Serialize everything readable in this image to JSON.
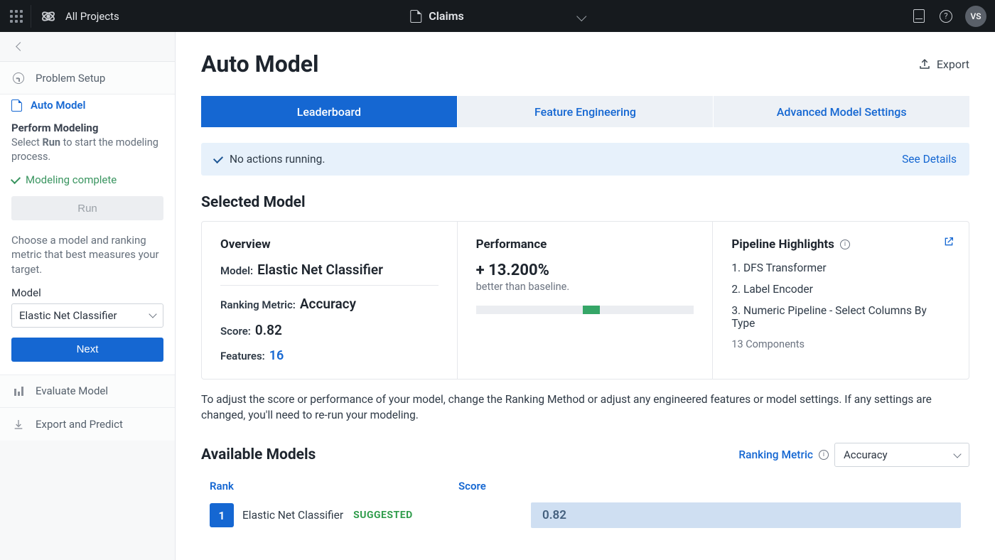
{
  "topbar": {
    "brand": "All Projects",
    "doc_name": "Claims",
    "avatar": "VS"
  },
  "sidebar": {
    "steps": {
      "problem_setup": "Problem Setup",
      "auto_model": "Auto Model",
      "evaluate": "Evaluate Model",
      "export": "Export and Predict"
    },
    "perform": {
      "title": "Perform Modeling",
      "desc_prefix": "Select ",
      "desc_bold": "Run",
      "desc_suffix": " to start the modeling process."
    },
    "status": "Modeling complete",
    "run_label": "Run",
    "help_text": "Choose a model and ranking metric that best measures your target.",
    "model_label": "Model",
    "model_value": "Elastic Net Classifier",
    "next_label": "Next"
  },
  "page": {
    "title": "Auto Model",
    "export_label": "Export"
  },
  "tabs": {
    "leaderboard": "Leaderboard",
    "feature_eng": "Feature Engineering",
    "advanced": "Advanced Model Settings"
  },
  "banner": {
    "message": "No actions running.",
    "link": "See Details"
  },
  "selected": {
    "section_title": "Selected Model",
    "overview": {
      "title": "Overview",
      "model_label": "Model:",
      "model_value": "Elastic Net Classifier",
      "rank_label": "Ranking Metric:",
      "rank_value": "Accuracy",
      "score_label": "Score:",
      "score_value": "0.82",
      "features_label": "Features:",
      "features_value": "16"
    },
    "performance": {
      "title": "Performance",
      "value": "+ 13.200%",
      "subtitle": "better than baseline.",
      "bar_fill_left_pct": 49,
      "bar_fill_width_pct": 8,
      "fill_color": "#35a667",
      "track_color": "#ebedf1"
    },
    "pipeline": {
      "title": "Pipeline Highlights",
      "items": [
        "1. DFS Transformer",
        "2. Label Encoder",
        "3. Numeric Pipeline - Select Columns By Type"
      ],
      "summary": "13 Components"
    }
  },
  "adjust_text": "To adjust the score or performance of your model, change the Ranking Method or adjust any engineered features or model settings. If any settings are changed, you'll need to re-run your modeling.",
  "available": {
    "title": "Available Models",
    "ranking_label": "Ranking Metric",
    "ranking_value": "Accuracy",
    "cols": {
      "rank": "Rank",
      "score": "Score"
    },
    "rows": [
      {
        "rank": "1",
        "name": "Elastic Net Classifier",
        "suggested": "SUGGESTED",
        "score": "0.82"
      }
    ]
  }
}
